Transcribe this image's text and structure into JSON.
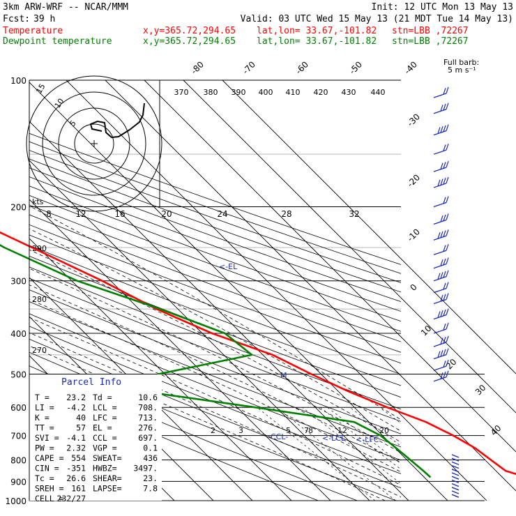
{
  "header": {
    "model": "3km ARW-WRF -- NCAR/MMM",
    "init": "Init: 12 UTC Mon 13 May 13",
    "fcst_label": "Fcst:",
    "fcst_value": "39 h",
    "valid": "Valid: 03 UTC Wed 15 May 13 (21 MDT Tue 14 May 13)",
    "temp_name": "Temperature",
    "dew_name": "Dewpoint temperature",
    "xy": "x,y=365.72,294.65",
    "latlon": "lat,lon= 33.67,-101.82",
    "stn": "stn=LBB ,72267"
  },
  "colors": {
    "temperature": "#ff0000",
    "dewpoint": "#008000",
    "annotation": "#1a2ab0",
    "grid": "#000000"
  },
  "chart_data": {
    "type": "line",
    "subtype": "skew-T log-p",
    "series": [
      {
        "name": "Temperature",
        "x": [
          36.3,
          32.5,
          31.5,
          30.5,
          28.1,
          24.6,
          18.4,
          12.6,
          7.5,
          2.5,
          -7.5,
          -15.5,
          -22.2,
          -31.6,
          -43.3,
          -52.6,
          -56.7,
          -55.8
        ],
        "y": [
          880,
          850,
          800,
          750,
          700,
          650,
          600,
          550,
          500,
          450,
          400,
          350,
          300,
          250,
          200,
          150,
          120,
          100
        ]
      },
      {
        "name": "Dewpoint temperature",
        "x": [
          11.6,
          11.4,
          10.9,
          10.3,
          9.5,
          6.2,
          -15.4,
          -39.9,
          -31.7,
          -2.8,
          -4.2,
          -14.5,
          -28.6,
          -38.7,
          -46.8,
          -62.6,
          -70.8,
          -79.5,
          -76.6,
          -68.5,
          -64.5
        ],
        "y": [
          880,
          850,
          800,
          750,
          700,
          650,
          600,
          550,
          500,
          450,
          400,
          350,
          300,
          250,
          200,
          180,
          150,
          130,
          120,
          110,
          100
        ]
      }
    ],
    "y_axis": {
      "label": "",
      "scale": "log",
      "range": [
        1000,
        100
      ],
      "ticks": [
        100,
        200,
        300,
        400,
        500,
        600,
        700,
        800,
        900,
        1000
      ]
    },
    "isotherm_labels": [
      "-80",
      "-70",
      "-60",
      "-50",
      "-40",
      "-30",
      "-20",
      "-10",
      "0",
      "10",
      "20",
      "30",
      "40"
    ],
    "theta_e_labels": [
      "370",
      "380",
      "390",
      "400",
      "410",
      "420",
      "430",
      "440"
    ],
    "hodograph_speed_labels": [
      "8",
      "12",
      "16",
      "20",
      "24",
      "28",
      "32"
    ],
    "hodograph_kts": "kts",
    "hodograph_rings": [
      "15",
      "10",
      "5"
    ],
    "mixing_ratio_labels": [
      "2",
      "3",
      "5",
      "7",
      "8",
      "12",
      "20"
    ],
    "theta_labels": [
      "290",
      "280",
      "270"
    ],
    "level_markers": [
      "EL",
      "LFC",
      "LCL",
      "CCL"
    ],
    "wind_legend": {
      "title": "Full barb:",
      "value": "5 m s⁻¹"
    }
  },
  "parcel_info": {
    "title": "Parcel Info",
    "rows": [
      [
        "T  =",
        "23.2",
        "Td =",
        "10.6"
      ],
      [
        "LI =",
        "-4.2",
        "LCL =",
        "708."
      ],
      [
        "K  =",
        "40",
        "LFC =",
        "713."
      ],
      [
        "TT =",
        "57",
        "EL  =",
        "276."
      ],
      [
        "SVI =",
        "-4.1",
        "CCL =",
        "697."
      ],
      [
        "PW =",
        "2.32",
        "VGP =",
        "0.1"
      ],
      [
        "CAPE =",
        "554",
        "SWEAT=",
        "436"
      ],
      [
        "CIN  =",
        "-351",
        "HWBZ=",
        "3497."
      ],
      [
        "Tc =",
        "26.6",
        "SHEAR=",
        "23."
      ],
      [
        "SREH =",
        "161",
        "LAPSE=",
        "7.8"
      ],
      [
        "CELL =",
        "232/27",
        "",
        ""
      ]
    ]
  }
}
